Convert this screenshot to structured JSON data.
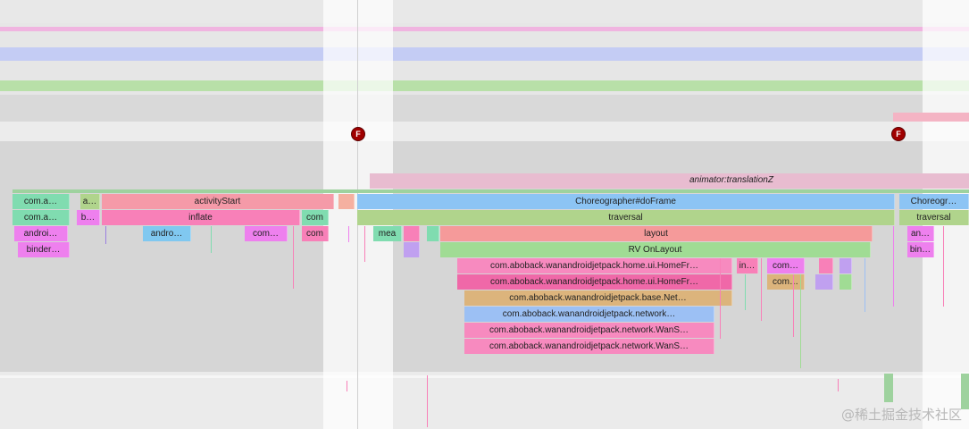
{
  "colors": {
    "pink_track": "#f0b4e0",
    "blue_track": "#c4ccf4",
    "green_track": "#b8e0a8",
    "trace_bg": "#d6d6d6",
    "selection": "#ffffff",
    "activityStart": "#f59aa8",
    "choreographer": "#8cc4f4",
    "traversal": "#b0d48c",
    "layout": "#f59a9a",
    "rv_onlayout": "#a0dc94",
    "homefr": "#f880b8",
    "base_net": "#dcb47c",
    "network": "#9cc0f4",
    "wans": "#f78abf",
    "com_a": "#80dcb0",
    "binder": "#e890f0",
    "android": "#80c8f0",
    "magenta": "#ee80ee"
  },
  "markers": {
    "frame_marker_1": "F",
    "frame_marker_2": "F"
  },
  "track_label": "animator:translationZ",
  "slices": {
    "com_a_1": "com.a…",
    "a_short": "a…",
    "activity_start": "activityStart",
    "choreographer_1": "Choreographer#doFrame",
    "choreographer_2": "Choreogr…",
    "com_a_2": "com.a…",
    "b_short": "b…",
    "inflate": "inflate",
    "com_1": "com",
    "traversal_1": "traversal",
    "traversal_2": "traversal",
    "androi": "androi…",
    "andro": "andro…",
    "com_2": "com…",
    "com_3": "com",
    "mea": "mea",
    "layout": "layout",
    "an_short": "an…",
    "binder": "binder…",
    "rv_onlayout": "RV OnLayout",
    "bin_short": "bin…",
    "home_fr_1": "com.aboback.wanandroidjetpack.home.ui.HomeFr…",
    "in_short": "in…",
    "com_4": "com…",
    "home_fr_2": "com.aboback.wanandroidjetpack.home.ui.HomeFr…",
    "com_5": "com…",
    "base_net": "com.aboback.wanandroidjetpack.base.Net…",
    "network": "com.aboback.wanandroidjetpack.network…",
    "wans_1": "com.aboback.wanandroidjetpack.network.WanS…",
    "wans_2": "com.aboback.wanandroidjetpack.network.WanS…"
  },
  "watermark": "@稀土掘金技术社区"
}
